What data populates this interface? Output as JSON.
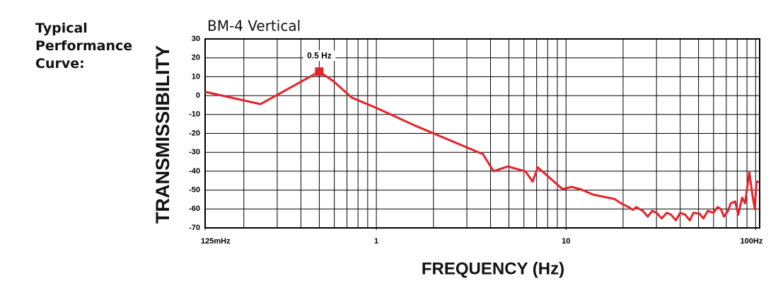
{
  "side_label": "Typical Performance Curve:",
  "chart_data": {
    "type": "line",
    "title": "BM-4 Vertical",
    "xlabel": "FREQUENCY (Hz)",
    "ylabel": "TRANSMISSIBILITY",
    "xscale": "log",
    "xlim": [
      0.125,
      105
    ],
    "ylim": [
      -70,
      30
    ],
    "xticks": [
      {
        "value": 0.125,
        "label": "125mHz"
      },
      1,
      10,
      {
        "value": 100,
        "label": "100Hz"
      }
    ],
    "xgrid": [
      0.2,
      0.3,
      0.4,
      0.5,
      0.6,
      0.7,
      0.8,
      0.9,
      1,
      2,
      3,
      4,
      5,
      6,
      7,
      8,
      9,
      10,
      20,
      30,
      40,
      50,
      60,
      70,
      80,
      90,
      100
    ],
    "yticks": [
      30,
      20,
      10,
      0,
      -10,
      -20,
      -30,
      -40,
      -50,
      -60,
      -70
    ],
    "grid": true,
    "series": [
      {
        "color": "#e5232b",
        "x": [
          0.125,
          0.245,
          0.5,
          0.596,
          0.74,
          1,
          1.61,
          3.65,
          4.15,
          4.93,
          6.1,
          6.67,
          7.1,
          9.6,
          10.7,
          11.9,
          13.9,
          18,
          19.5,
          21.4,
          22.5,
          23.5,
          25.4,
          27,
          28.5,
          30,
          32,
          34,
          35.8,
          38,
          40,
          42.5,
          45,
          47,
          50.6,
          53,
          56,
          60,
          63,
          65.6,
          68,
          71.5,
          74,
          78,
          81,
          84.9,
          88,
          92.6,
          96,
          99,
          101,
          104
        ],
        "values": [
          2,
          -4.5,
          12.7,
          7.5,
          -1,
          -6.5,
          -16,
          -31,
          -40,
          -37.5,
          -40,
          -45.5,
          -38,
          -49.5,
          -48.3,
          -49.5,
          -52.4,
          -54.7,
          -57,
          -59,
          -60.5,
          -59,
          -61,
          -64,
          -61,
          -62,
          -65,
          -62,
          -63,
          -66,
          -62,
          -63,
          -66,
          -62,
          -62.5,
          -65,
          -61,
          -62,
          -59,
          -60,
          -64,
          -61,
          -57,
          -56,
          -63,
          -54,
          -57,
          -40.4,
          -52,
          -60,
          -45.5,
          -45.7
        ]
      }
    ],
    "markers": [
      {
        "label": "0.5 Hz",
        "x": 0.5,
        "y": 12.7
      }
    ]
  }
}
